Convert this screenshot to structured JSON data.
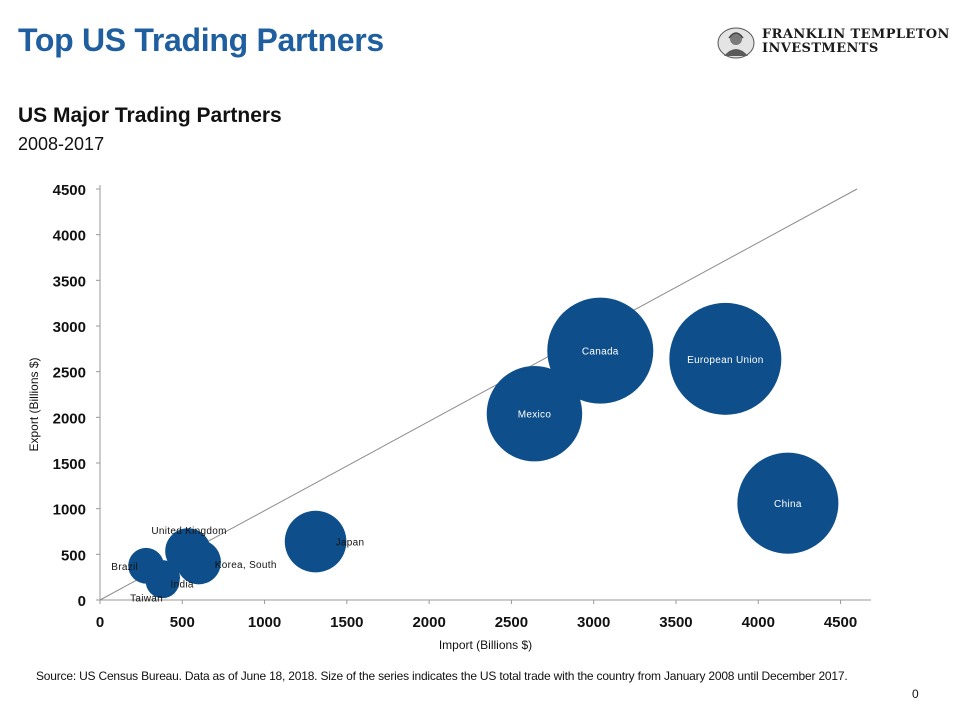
{
  "header": {
    "title": "Top US Trading Partners",
    "logo_line1": "FRANKLIN TEMPLETON",
    "logo_line2": "INVESTMENTS"
  },
  "chart_heading": {
    "subtitle": "US Major Trading Partners",
    "years": "2008-2017"
  },
  "chart_data": {
    "type": "scatter",
    "bubble": true,
    "xlabel": "Import (Billions $)",
    "ylabel": "Export (Billions $)",
    "xlim": [
      0,
      4600
    ],
    "ylim": [
      0,
      4500
    ],
    "xticks": [
      0,
      500,
      1000,
      1500,
      2000,
      2500,
      3000,
      3500,
      4000,
      4500
    ],
    "yticks": [
      0,
      500,
      1000,
      1500,
      2000,
      2500,
      3000,
      3500,
      4000,
      4500
    ],
    "grid": false,
    "reference_line": {
      "from": [
        0,
        0
      ],
      "to": [
        4600,
        4500
      ]
    },
    "points": [
      {
        "label": "Canada",
        "x": 3040,
        "y": 2730,
        "total_trade": 5770
      },
      {
        "label": "European Union",
        "x": 3800,
        "y": 2640,
        "total_trade": 6440
      },
      {
        "label": "Mexico",
        "x": 2640,
        "y": 2040,
        "total_trade": 4680
      },
      {
        "label": "China",
        "x": 4180,
        "y": 1060,
        "total_trade": 5240
      },
      {
        "label": "Japan",
        "x": 1310,
        "y": 640,
        "total_trade": 1950
      },
      {
        "label": "United Kingdom",
        "x": 535,
        "y": 535,
        "total_trade": 1070
      },
      {
        "label": "Korea, South",
        "x": 600,
        "y": 415,
        "total_trade": 1015
      },
      {
        "label": "Brazil",
        "x": 280,
        "y": 375,
        "total_trade": 655
      },
      {
        "label": "India",
        "x": 380,
        "y": 245,
        "total_trade": 625
      },
      {
        "label": "Taiwan",
        "x": 380,
        "y": 205,
        "total_trade": 585
      }
    ]
  },
  "footer": {
    "source": "Source: US Census Bureau. Data as of June 18, 2018. Size of the series indicates the US total trade with the country from January 2008 until December 2017.",
    "page_number": "0"
  }
}
